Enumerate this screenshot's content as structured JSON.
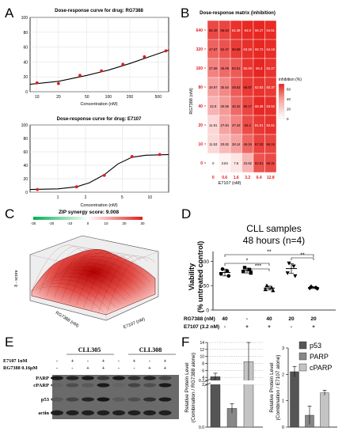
{
  "panels": {
    "A": "A",
    "B": "B",
    "C": "C",
    "D": "D",
    "E": "E",
    "F": "F"
  },
  "chart_data": [
    {
      "id": "A1",
      "type": "scatter",
      "title": "Dose-response curve for drug: RG7388",
      "xlabel": "Concentration (nM)",
      "ylabel": "",
      "xscale": "log",
      "xlim": [
        8,
        700
      ],
      "ylim": [
        0,
        100
      ],
      "xticks": [
        "10",
        "20",
        "50",
        "100",
        "200",
        "500"
      ],
      "xtick_values": [
        10,
        20,
        50,
        100,
        200,
        500
      ],
      "yticks": [
        "0",
        "20",
        "40",
        "60",
        "80",
        "100"
      ],
      "x": [
        10,
        20,
        40,
        80,
        160,
        320,
        640
      ],
      "y": [
        12,
        11,
        22,
        28,
        37,
        47,
        55
      ],
      "fit": [
        [
          8,
          10
        ],
        [
          20,
          14
        ],
        [
          50,
          22
        ],
        [
          100,
          29
        ],
        [
          200,
          38
        ],
        [
          400,
          48
        ],
        [
          700,
          56
        ]
      ],
      "grid": true
    },
    {
      "id": "A2",
      "type": "scatter",
      "title": "Dose-response curve for drug: E7107",
      "xlabel": "Concentration (nM)",
      "ylabel": "",
      "xscale": "log",
      "xlim": [
        0.5,
        16
      ],
      "ylim": [
        0,
        100
      ],
      "xticks": [
        "1",
        "2",
        "5",
        "10"
      ],
      "xtick_values": [
        1,
        2,
        5,
        10
      ],
      "yticks": [
        "0",
        "20",
        "40",
        "60",
        "80",
        "100"
      ],
      "x": [
        0.6,
        1.6,
        3.2,
        6.4,
        12.8
      ],
      "y": [
        4,
        8,
        25,
        53,
        56
      ],
      "fit": [
        [
          0.5,
          4
        ],
        [
          1,
          5
        ],
        [
          1.6,
          8
        ],
        [
          2.2,
          14
        ],
        [
          3.2,
          26
        ],
        [
          4.5,
          42
        ],
        [
          6.4,
          52
        ],
        [
          9,
          55
        ],
        [
          16,
          56
        ]
      ],
      "grid": true
    },
    {
      "id": "B",
      "type": "heatmap",
      "title": "Dose-response matrix (inhibition)",
      "xlabel": "E7107 (nM)",
      "ylabel": "RG7388 (nM)",
      "x": [
        "0",
        "0.6",
        "1.6",
        "3.2",
        "6.4",
        "12.8"
      ],
      "y": [
        "640",
        "320",
        "160",
        "80",
        "40",
        "20",
        "10",
        "0"
      ],
      "values": [
        [
          55.49,
          56.64,
          62.49,
          64.8,
          66.17,
          64.61
        ],
        [
          47.57,
          52.47,
          59.68,
          63.26,
          65.73,
          64.19
        ],
        [
          37.59,
          45.09,
          50.01,
          62.09,
          66.3,
          62.27
        ],
        [
          28.97,
          35.54,
          49.53,
          59.87,
          62.83,
          60.37
        ],
        [
          22.8,
          30.55,
          45.32,
          56.17,
          65.36,
          63.52
        ],
        [
          11.91,
          27.84,
          37.43,
          54.2,
          61.01,
          62.61
        ],
        [
          11.53,
          20.82,
          28.14,
          46.34,
          57.32,
          56.15
        ],
        [
          0,
          3.84,
          7.6,
          22.62,
          52.61,
          55.31
        ]
      ],
      "colorbar": {
        "title": "inhibition (%)",
        "ticks": [
          "0",
          "20",
          "40",
          "60"
        ],
        "range": [
          0,
          70
        ]
      }
    },
    {
      "id": "C",
      "type": "surface",
      "title": "ZIP synergy score: 9.008",
      "colorbar_ticks": [
        "-30",
        "-20",
        "-10",
        "0",
        "10",
        "20",
        "30"
      ],
      "xlabel": "E7107 (nM)",
      "ylabel": "RG7388 (nM)",
      "zlabel": "δ - score"
    },
    {
      "id": "D",
      "type": "scatter",
      "title": "CLL samples",
      "subtitle": "48 hours (n=4)",
      "ylabel_line1": "Viability",
      "ylabel_line2": "(% untreated control)",
      "ylim": [
        0,
        120
      ],
      "yticks": [
        "0",
        "50",
        "100"
      ],
      "rows": [
        {
          "label": "RG7388 (nM)",
          "values": [
            "40",
            "-",
            "40",
            "20",
            "20"
          ]
        },
        {
          "label": "E7107 (3.2 nM)",
          "values": [
            "-",
            "+",
            "+",
            "-",
            "+"
          ]
        }
      ],
      "groups": [
        {
          "marker": "circle",
          "points": [
            84,
            80,
            74,
            70
          ],
          "mean": 77,
          "sd": 7
        },
        {
          "marker": "square",
          "points": [
            87,
            83,
            79,
            76
          ],
          "mean": 81,
          "sd": 5
        },
        {
          "marker": "triangle",
          "points": [
            50,
            46,
            42,
            40
          ],
          "mean": 45,
          "sd": 4
        },
        {
          "marker": "triangle-down",
          "points": [
            96,
            90,
            76,
            70
          ],
          "mean": 85,
          "sd": 10
        },
        {
          "marker": "diamond",
          "points": [
            48,
            46,
            45,
            44
          ],
          "mean": 46,
          "sd": 2
        }
      ],
      "significance": [
        {
          "from": 0,
          "to": 2,
          "label": "*"
        },
        {
          "from": 1,
          "to": 2,
          "label": "***"
        },
        {
          "from": 0,
          "to": 4,
          "label": "**"
        },
        {
          "from": 3,
          "to": 4,
          "label": "**"
        }
      ]
    },
    {
      "id": "E",
      "type": "blot",
      "samples": [
        "CLL305",
        "CLL308"
      ],
      "treatments": [
        {
          "label": "E7107 1nM",
          "values": [
            "-",
            "+",
            "-",
            "+",
            "-",
            "+",
            "-",
            "+"
          ]
        },
        {
          "label": "RG7388 0.16μM",
          "values": [
            "-",
            "-",
            "+",
            "+",
            "-",
            "-",
            "+",
            "+"
          ]
        }
      ],
      "bands": [
        "PARP",
        "cPARP",
        "p53",
        "actin"
      ]
    },
    {
      "id": "F1",
      "type": "bar",
      "ylabel_line1": "Relative Protein Level",
      "ylabel_line2": "(Combination / RG7388 alone)",
      "yticks": [
        "0.0",
        "0.2",
        "2",
        "4",
        "6",
        "8",
        "10",
        "12",
        "14"
      ],
      "series": [
        {
          "name": "p53",
          "color": "#555555",
          "value": 4.2,
          "err": 1.0
        },
        {
          "name": "PARP",
          "color": "#888888",
          "value": 0.08,
          "err": 0.02
        },
        {
          "name": "cPARP",
          "color": "#c4c4c4",
          "value": 8.5,
          "err": 5.5
        }
      ]
    },
    {
      "id": "F2",
      "type": "bar",
      "ylabel_line1": "Relative Protein Level",
      "ylabel_line2": "(Combination / E7107 alone)",
      "ylim": [
        0,
        3.0
      ],
      "yticks": [
        "0",
        "1",
        "2",
        "3"
      ],
      "series": [
        {
          "name": "p53",
          "color": "#555555",
          "value": 2.1,
          "err": 0.2
        },
        {
          "name": "PARP",
          "color": "#888888",
          "value": 0.45,
          "err": 0.35
        },
        {
          "name": "cPARP",
          "color": "#c4c4c4",
          "value": 1.3,
          "err": 0.1
        }
      ]
    }
  ]
}
